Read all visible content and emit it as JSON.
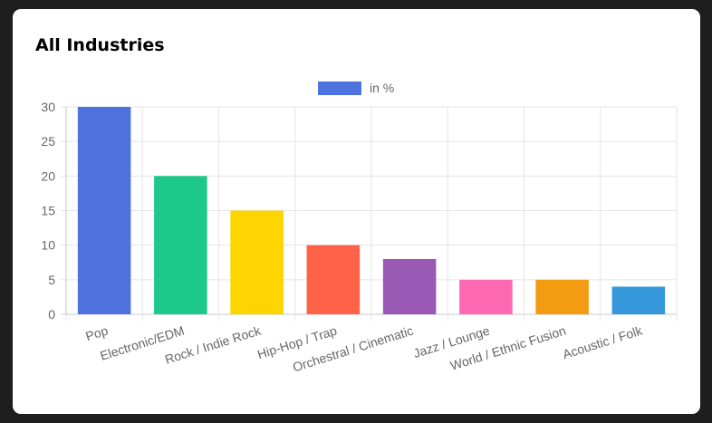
{
  "card": {
    "title": "All Industries"
  },
  "chart_data": {
    "type": "bar",
    "categories": [
      "Pop",
      "Electronic/EDM",
      "Rock / Indie Rock",
      "Hip-Hop / Trap",
      "Orchestral / Cinematic",
      "Jazz / Lounge",
      "World / Ethnic Fusion",
      "Acoustic / Folk"
    ],
    "series": [
      {
        "name": "in %",
        "values": [
          30,
          20,
          15,
          10,
          8,
          5,
          5,
          4
        ]
      }
    ],
    "bar_colors": [
      "#4e73df",
      "#1cc88a",
      "#ffd500",
      "#ff6347",
      "#9b59b6",
      "#ff69b4",
      "#f39c12",
      "#3498db"
    ],
    "legend_color": "#4e73df",
    "ylim": [
      0,
      30
    ],
    "yticks": [
      0,
      5,
      10,
      15,
      20,
      25,
      30
    ],
    "legend_position": "top-center",
    "grid": true
  }
}
